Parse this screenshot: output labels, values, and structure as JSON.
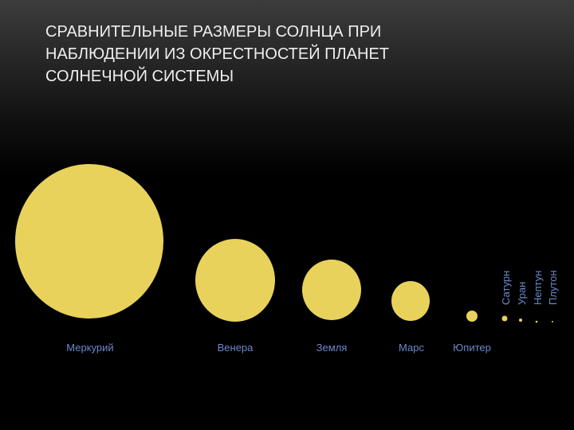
{
  "title": {
    "lines": [
      "СРАВНИТЕЛЬНЫЕ РАЗМЕРЫ СОЛНЦА ПРИ",
      "НАБЛЮДЕНИИ ИЗ ОКРЕСТНОСТЕЙ ПЛАНЕТ",
      "СОЛНЕЧНОЙ СИСТЕМЫ"
    ]
  },
  "planets": [
    "Меркурий",
    "Венера",
    "Земля",
    "Марс",
    "Юпитер",
    "Сатурн",
    "Уран",
    "Нептун",
    "Плутон"
  ]
}
